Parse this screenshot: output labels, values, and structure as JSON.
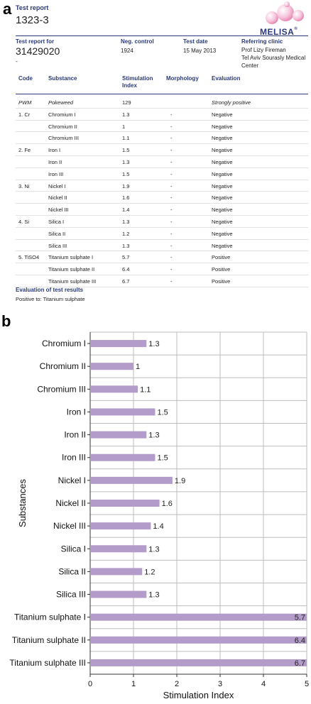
{
  "panel_a": {
    "label": "a",
    "title": "Test report",
    "report_id": "1323-3",
    "logo_text": "MELISA",
    "logo_mark": "®",
    "meta": {
      "test_report_for_label": "Test report for",
      "test_report_for_value": "31429020",
      "test_report_for_sub": "-",
      "neg_control_label": "Neg. control",
      "neg_control_value": "1924",
      "test_date_label": "Test date",
      "test_date_value": "15 May 2013",
      "referring_clinic_label": "Referring clinic",
      "referring_clinic_line1": "Prof Lizy Fireman",
      "referring_clinic_line2": "Tel Aviv Sourasly Medical",
      "referring_clinic_line3": "Center"
    },
    "table": {
      "headers": {
        "code": "Code",
        "substance": "Substance",
        "index_line1": "Stimulation",
        "index_line2": "Index",
        "morphology": "Morphology",
        "evaluation": "Evaluation"
      },
      "rows": [
        {
          "code": "PWM",
          "substance": "Pokeweed",
          "index": "129",
          "morphology": "",
          "evaluation": "Strongly positive"
        },
        {
          "code": "1. Cr",
          "substance": "Chromium I",
          "index": "1.3",
          "morphology": "-",
          "evaluation": "Negative"
        },
        {
          "code": "",
          "substance": "Chromium II",
          "index": "1",
          "morphology": "-",
          "evaluation": "Negative"
        },
        {
          "code": "",
          "substance": "Chromium III",
          "index": "1.1",
          "morphology": "-",
          "evaluation": "Negative"
        },
        {
          "code": "2. Fe",
          "substance": "Iron I",
          "index": "1.5",
          "morphology": "-",
          "evaluation": "Negative"
        },
        {
          "code": "",
          "substance": "Iron II",
          "index": "1.3",
          "morphology": "-",
          "evaluation": "Negative"
        },
        {
          "code": "",
          "substance": "Iron III",
          "index": "1.5",
          "morphology": "-",
          "evaluation": "Negative"
        },
        {
          "code": "3. Ni",
          "substance": "Nickel I",
          "index": "1.9",
          "morphology": "-",
          "evaluation": "Negative"
        },
        {
          "code": "",
          "substance": "Nickel II",
          "index": "1.6",
          "morphology": "-",
          "evaluation": "Negative"
        },
        {
          "code": "",
          "substance": "Nickel III",
          "index": "1.4",
          "morphology": "-",
          "evaluation": "Negative"
        },
        {
          "code": "4. Si",
          "substance": "Silica I",
          "index": "1.3",
          "morphology": "-",
          "evaluation": "Negative"
        },
        {
          "code": "",
          "substance": "Silica II",
          "index": "1.2",
          "morphology": "-",
          "evaluation": "Negative"
        },
        {
          "code": "",
          "substance": "Silica III",
          "index": "1.3",
          "morphology": "-",
          "evaluation": "Negative"
        },
        {
          "code": "5. TiSO4",
          "substance": "Titanium sulphate I",
          "index": "5.7",
          "morphology": "-",
          "evaluation": "Positive"
        },
        {
          "code": "",
          "substance": "Titanium sulphate II",
          "index": "6.4",
          "morphology": "-",
          "evaluation": "Positive"
        },
        {
          "code": "",
          "substance": "Titanium sulphate III",
          "index": "6.7",
          "morphology": "-",
          "evaluation": "Positive"
        }
      ]
    },
    "evaluation_title": "Evaluation of test results",
    "evaluation_text": "Positive to: Titanium sulphate"
  },
  "panel_b_label": "b",
  "chart_data": {
    "type": "bar",
    "orientation": "horizontal",
    "categories": [
      "Chromium I",
      "Chromium II",
      "Chromium III",
      "Iron I",
      "Iron II",
      "Iron III",
      "Nickel I",
      "Nickel II",
      "Nickel III",
      "Silica I",
      "Silica II",
      "Silica III",
      "Titanium sulphate I",
      "Titanium sulphate II",
      "Titanium sulphate III"
    ],
    "values": [
      1.3,
      1,
      1.1,
      1.5,
      1.3,
      1.5,
      1.9,
      1.6,
      1.4,
      1.3,
      1.2,
      1.3,
      5.7,
      6.4,
      6.7
    ],
    "value_labels": [
      "1.3",
      "1",
      "1.1",
      "1.5",
      "1.3",
      "1.5",
      "1.9",
      "1.6",
      "1.4",
      "1.3",
      "1.2",
      "1.3",
      "5.7",
      "6.4",
      "6.7"
    ],
    "xlabel": "Stimulation Index",
    "ylabel": "Substances",
    "xlim": [
      0,
      5
    ],
    "xticks": [
      "0",
      "1",
      "2",
      "3",
      "4",
      "5"
    ],
    "grid": true,
    "bar_color": "#b39cc9",
    "grid_color": "#bdbdbd"
  }
}
